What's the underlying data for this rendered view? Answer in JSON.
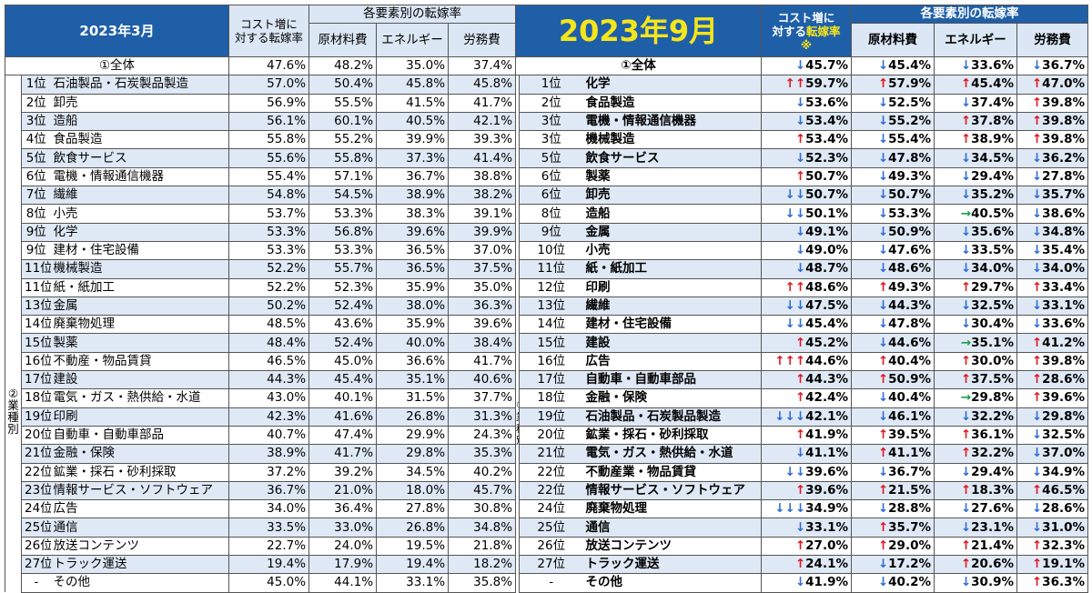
{
  "left": {
    "title": "2023年3月",
    "cost_header": [
      "コスト増に",
      "対する転嫁率"
    ],
    "group_header": "各要素別の転嫁率",
    "cols": [
      "原材料費",
      "エネルギー",
      "労務費"
    ],
    "total": {
      "label": "①全体",
      "vals": [
        "47.6%",
        "48.2%",
        "35.0%",
        "37.4%"
      ]
    },
    "side": [
      "②",
      "業",
      "種",
      "別"
    ],
    "rows": [
      {
        "rank": "1位",
        "name": "石油製品・石炭製品製造",
        "vals": [
          "57.0%",
          "50.4%",
          "45.8%",
          "45.8%"
        ]
      },
      {
        "rank": "2位",
        "name": "卸売",
        "vals": [
          "56.9%",
          "55.5%",
          "41.5%",
          "41.7%"
        ]
      },
      {
        "rank": "3位",
        "name": "造船",
        "vals": [
          "56.1%",
          "60.1%",
          "40.5%",
          "42.1%"
        ]
      },
      {
        "rank": "4位",
        "name": "食品製造",
        "vals": [
          "55.8%",
          "55.2%",
          "39.9%",
          "39.3%"
        ]
      },
      {
        "rank": "5位",
        "name": "飲食サービス",
        "vals": [
          "55.6%",
          "55.8%",
          "37.3%",
          "41.4%"
        ]
      },
      {
        "rank": "6位",
        "name": "電機・情報通信機器",
        "vals": [
          "55.4%",
          "57.1%",
          "36.7%",
          "38.8%"
        ]
      },
      {
        "rank": "7位",
        "name": "繊維",
        "vals": [
          "54.8%",
          "54.5%",
          "38.9%",
          "38.2%"
        ]
      },
      {
        "rank": "8位",
        "name": "小売",
        "vals": [
          "53.7%",
          "53.3%",
          "38.3%",
          "39.1%"
        ]
      },
      {
        "rank": "9位",
        "name": "化学",
        "vals": [
          "53.3%",
          "56.8%",
          "39.6%",
          "39.9%"
        ]
      },
      {
        "rank": "9位",
        "name": "建材・住宅設備",
        "vals": [
          "53.3%",
          "53.3%",
          "36.5%",
          "37.0%"
        ]
      },
      {
        "rank": "11位",
        "name": "機械製造",
        "vals": [
          "52.2%",
          "55.7%",
          "36.5%",
          "37.5%"
        ]
      },
      {
        "rank": "11位",
        "name": "紙・紙加工",
        "vals": [
          "52.2%",
          "52.3%",
          "35.9%",
          "35.0%"
        ]
      },
      {
        "rank": "13位",
        "name": "金属",
        "vals": [
          "50.2%",
          "52.4%",
          "38.0%",
          "36.3%"
        ]
      },
      {
        "rank": "14位",
        "name": "廃棄物処理",
        "vals": [
          "48.5%",
          "43.6%",
          "35.9%",
          "39.6%"
        ]
      },
      {
        "rank": "15位",
        "name": "製薬",
        "vals": [
          "48.4%",
          "52.4%",
          "40.0%",
          "38.4%"
        ]
      },
      {
        "rank": "16位",
        "name": "不動産・物品賃貸",
        "vals": [
          "46.5%",
          "45.0%",
          "36.6%",
          "41.7%"
        ]
      },
      {
        "rank": "17位",
        "name": "建設",
        "vals": [
          "44.3%",
          "45.4%",
          "35.1%",
          "40.6%"
        ]
      },
      {
        "rank": "18位",
        "name": "電気・ガス・熱供給・水道",
        "vals": [
          "43.0%",
          "40.1%",
          "31.5%",
          "37.7%"
        ]
      },
      {
        "rank": "19位",
        "name": "印刷",
        "vals": [
          "42.3%",
          "41.6%",
          "26.8%",
          "31.3%"
        ]
      },
      {
        "rank": "20位",
        "name": "自動車・自動車部品",
        "vals": [
          "40.7%",
          "47.4%",
          "29.9%",
          "24.3%"
        ]
      },
      {
        "rank": "21位",
        "name": "金融・保険",
        "vals": [
          "38.9%",
          "41.7%",
          "29.8%",
          "35.3%"
        ]
      },
      {
        "rank": "22位",
        "name": "鉱業・採石・砂利採取",
        "vals": [
          "37.2%",
          "39.2%",
          "34.5%",
          "40.2%"
        ]
      },
      {
        "rank": "23位",
        "name": "情報サービス・ソフトウェア",
        "vals": [
          "36.7%",
          "21.0%",
          "18.0%",
          "45.7%"
        ]
      },
      {
        "rank": "24位",
        "name": "広告",
        "vals": [
          "34.0%",
          "36.4%",
          "27.8%",
          "30.8%"
        ]
      },
      {
        "rank": "25位",
        "name": "通信",
        "vals": [
          "33.5%",
          "33.0%",
          "26.8%",
          "34.8%"
        ]
      },
      {
        "rank": "26位",
        "name": "放送コンテンツ",
        "vals": [
          "22.7%",
          "24.0%",
          "19.5%",
          "21.8%"
        ]
      },
      {
        "rank": "27位",
        "name": "トラック運送",
        "vals": [
          "19.4%",
          "17.9%",
          "19.4%",
          "18.2%"
        ]
      },
      {
        "rank": "-",
        "name": "その他",
        "vals": [
          "45.0%",
          "44.1%",
          "33.1%",
          "35.8%"
        ]
      }
    ]
  },
  "right": {
    "title": "2023年9月",
    "cost_header": [
      "コスト増に",
      "対する",
      "転嫁率",
      "※"
    ],
    "group_header": "各要素別の転嫁率",
    "cols": [
      "原材料費",
      "エネルギー",
      "労務費"
    ],
    "total": {
      "label": "①全体",
      "vals": [
        [
          "↓",
          "45.7%"
        ],
        [
          "↓",
          "45.4%"
        ],
        [
          "↓",
          "33.6%"
        ],
        [
          "↓",
          "36.7%"
        ]
      ]
    },
    "side": [
      "②",
      "業",
      "種",
      "別"
    ],
    "rows": [
      {
        "rank": "1位",
        "name": "化学",
        "vals": [
          [
            "↑↑",
            "59.7%"
          ],
          [
            "↑",
            "57.9%"
          ],
          [
            "↑",
            "45.4%"
          ],
          [
            "↑",
            "47.0%"
          ]
        ]
      },
      {
        "rank": "2位",
        "name": "食品製造",
        "vals": [
          [
            "↓",
            "53.6%"
          ],
          [
            "↓",
            "52.5%"
          ],
          [
            "↓",
            "37.4%"
          ],
          [
            "↑",
            "39.8%"
          ]
        ]
      },
      {
        "rank": "3位",
        "name": "電機・情報通信機器",
        "vals": [
          [
            "↓",
            "53.4%"
          ],
          [
            "↓",
            "55.2%"
          ],
          [
            "↑",
            "37.8%"
          ],
          [
            "↑",
            "39.8%"
          ]
        ]
      },
      {
        "rank": "3位",
        "name": "機械製造",
        "vals": [
          [
            "↑",
            "53.4%"
          ],
          [
            "↓",
            "55.4%"
          ],
          [
            "↑",
            "38.9%"
          ],
          [
            "↑",
            "39.8%"
          ]
        ]
      },
      {
        "rank": "5位",
        "name": "飲食サービス",
        "vals": [
          [
            "↓",
            "52.3%"
          ],
          [
            "↓",
            "47.8%"
          ],
          [
            "↓",
            "34.5%"
          ],
          [
            "↓",
            "36.2%"
          ]
        ]
      },
      {
        "rank": "6位",
        "name": "製薬",
        "vals": [
          [
            "↑",
            "50.7%"
          ],
          [
            "↓",
            "49.3%"
          ],
          [
            "↓",
            "29.4%"
          ],
          [
            "↓",
            "27.8%"
          ]
        ]
      },
      {
        "rank": "6位",
        "name": "卸売",
        "vals": [
          [
            "↓↓",
            "50.7%"
          ],
          [
            "↓",
            "50.7%"
          ],
          [
            "↓",
            "35.2%"
          ],
          [
            "↓",
            "35.7%"
          ]
        ]
      },
      {
        "rank": "8位",
        "name": "造船",
        "vals": [
          [
            "↓↓",
            "50.1%"
          ],
          [
            "↓",
            "53.3%"
          ],
          [
            "→",
            "40.5%"
          ],
          [
            "↓",
            "38.6%"
          ]
        ]
      },
      {
        "rank": "9位",
        "name": "金属",
        "vals": [
          [
            "↓",
            "49.1%"
          ],
          [
            "↓",
            "50.9%"
          ],
          [
            "↓",
            "35.6%"
          ],
          [
            "↓",
            "34.8%"
          ]
        ]
      },
      {
        "rank": "10位",
        "name": "小売",
        "vals": [
          [
            "↓",
            "49.0%"
          ],
          [
            "↓",
            "47.6%"
          ],
          [
            "↓",
            "33.5%"
          ],
          [
            "↓",
            "35.4%"
          ]
        ]
      },
      {
        "rank": "11位",
        "name": "紙・紙加工",
        "vals": [
          [
            "↓",
            "48.7%"
          ],
          [
            "↓",
            "48.6%"
          ],
          [
            "↓",
            "34.0%"
          ],
          [
            "↓",
            "34.0%"
          ]
        ]
      },
      {
        "rank": "12位",
        "name": "印刷",
        "vals": [
          [
            "↑↑",
            "48.6%"
          ],
          [
            "↑",
            "49.3%"
          ],
          [
            "↑",
            "29.7%"
          ],
          [
            "↑",
            "33.4%"
          ]
        ]
      },
      {
        "rank": "13位",
        "name": "繊維",
        "vals": [
          [
            "↓↓",
            "47.5%"
          ],
          [
            "↓",
            "44.3%"
          ],
          [
            "↓",
            "32.5%"
          ],
          [
            "↓",
            "33.1%"
          ]
        ]
      },
      {
        "rank": "14位",
        "name": "建材・住宅設備",
        "vals": [
          [
            "↓↓",
            "45.4%"
          ],
          [
            "↓",
            "47.8%"
          ],
          [
            "↓",
            "30.4%"
          ],
          [
            "↓",
            "33.6%"
          ]
        ]
      },
      {
        "rank": "15位",
        "name": "建設",
        "vals": [
          [
            "↑",
            "45.2%"
          ],
          [
            "↓",
            "44.6%"
          ],
          [
            "→",
            "35.1%"
          ],
          [
            "↑",
            "41.2%"
          ]
        ]
      },
      {
        "rank": "16位",
        "name": "広告",
        "vals": [
          [
            "↑↑↑",
            "44.6%"
          ],
          [
            "↑",
            "40.4%"
          ],
          [
            "↑",
            "30.0%"
          ],
          [
            "↑",
            "39.8%"
          ]
        ]
      },
      {
        "rank": "17位",
        "name": "自動車・自動車部品",
        "vals": [
          [
            "↑",
            "44.3%"
          ],
          [
            "↑",
            "50.9%"
          ],
          [
            "↑",
            "37.5%"
          ],
          [
            "↑",
            "28.6%"
          ]
        ]
      },
      {
        "rank": "18位",
        "name": "金融・保険",
        "vals": [
          [
            "↑",
            "42.4%"
          ],
          [
            "↓",
            "40.4%"
          ],
          [
            "→",
            "29.8%"
          ],
          [
            "↑",
            "39.6%"
          ]
        ]
      },
      {
        "rank": "19位",
        "name": "石油製品・石炭製品製造",
        "vals": [
          [
            "↓↓↓",
            "42.1%"
          ],
          [
            "↓",
            "46.1%"
          ],
          [
            "↓",
            "32.2%"
          ],
          [
            "↓",
            "29.8%"
          ]
        ]
      },
      {
        "rank": "20位",
        "name": "鉱業・採石・砂利採取",
        "vals": [
          [
            "↑",
            "41.9%"
          ],
          [
            "↑",
            "39.5%"
          ],
          [
            "↑",
            "36.1%"
          ],
          [
            "↓",
            "32.5%"
          ]
        ]
      },
      {
        "rank": "21位",
        "name": "電気・ガス・熱供給・水道",
        "vals": [
          [
            "↓",
            "41.1%"
          ],
          [
            "↑",
            "41.1%"
          ],
          [
            "↑",
            "32.2%"
          ],
          [
            "↓",
            "37.0%"
          ]
        ]
      },
      {
        "rank": "22位",
        "name": "不動産業・物品賃貸",
        "vals": [
          [
            "↓↓",
            "39.6%"
          ],
          [
            "↓",
            "36.7%"
          ],
          [
            "↓",
            "29.4%"
          ],
          [
            "↓",
            "34.9%"
          ]
        ]
      },
      {
        "rank": "22位",
        "name": "情報サービス・ソフトウェア",
        "vals": [
          [
            "↑",
            "39.6%"
          ],
          [
            "↑",
            "21.5%"
          ],
          [
            "↑",
            "18.3%"
          ],
          [
            "↑",
            "46.5%"
          ]
        ]
      },
      {
        "rank": "24位",
        "name": "廃棄物処理",
        "vals": [
          [
            "↓↓↓",
            "34.9%"
          ],
          [
            "↓",
            "28.8%"
          ],
          [
            "↓",
            "27.6%"
          ],
          [
            "↓",
            "28.6%"
          ]
        ]
      },
      {
        "rank": "25位",
        "name": "通信",
        "vals": [
          [
            "↓",
            "33.1%"
          ],
          [
            "↑",
            "35.7%"
          ],
          [
            "↓",
            "23.1%"
          ],
          [
            "↓",
            "31.0%"
          ]
        ]
      },
      {
        "rank": "26位",
        "name": "放送コンテンツ",
        "vals": [
          [
            "↑",
            "27.0%"
          ],
          [
            "↑",
            "29.0%"
          ],
          [
            "↑",
            "21.4%"
          ],
          [
            "↑",
            "32.3%"
          ]
        ]
      },
      {
        "rank": "27位",
        "name": "トラック運送",
        "vals": [
          [
            "↑",
            "24.1%"
          ],
          [
            "↓",
            "17.2%"
          ],
          [
            "↑",
            "20.6%"
          ],
          [
            "↑",
            "19.1%"
          ]
        ]
      },
      {
        "rank": "-",
        "name": "その他",
        "vals": [
          [
            "↓",
            "41.9%"
          ],
          [
            "↓",
            "40.2%"
          ],
          [
            "↓",
            "30.9%"
          ],
          [
            "↑",
            "36.3%"
          ]
        ]
      }
    ]
  },
  "colors": {
    "header_blue": "#1f5fa8",
    "header_light": "#dbe7f5",
    "row_stripe": "#dfe9f6",
    "up": "#e0141e",
    "down": "#2e6bd6",
    "flat": "#13a048",
    "title_yellow": "#f5e51b"
  }
}
